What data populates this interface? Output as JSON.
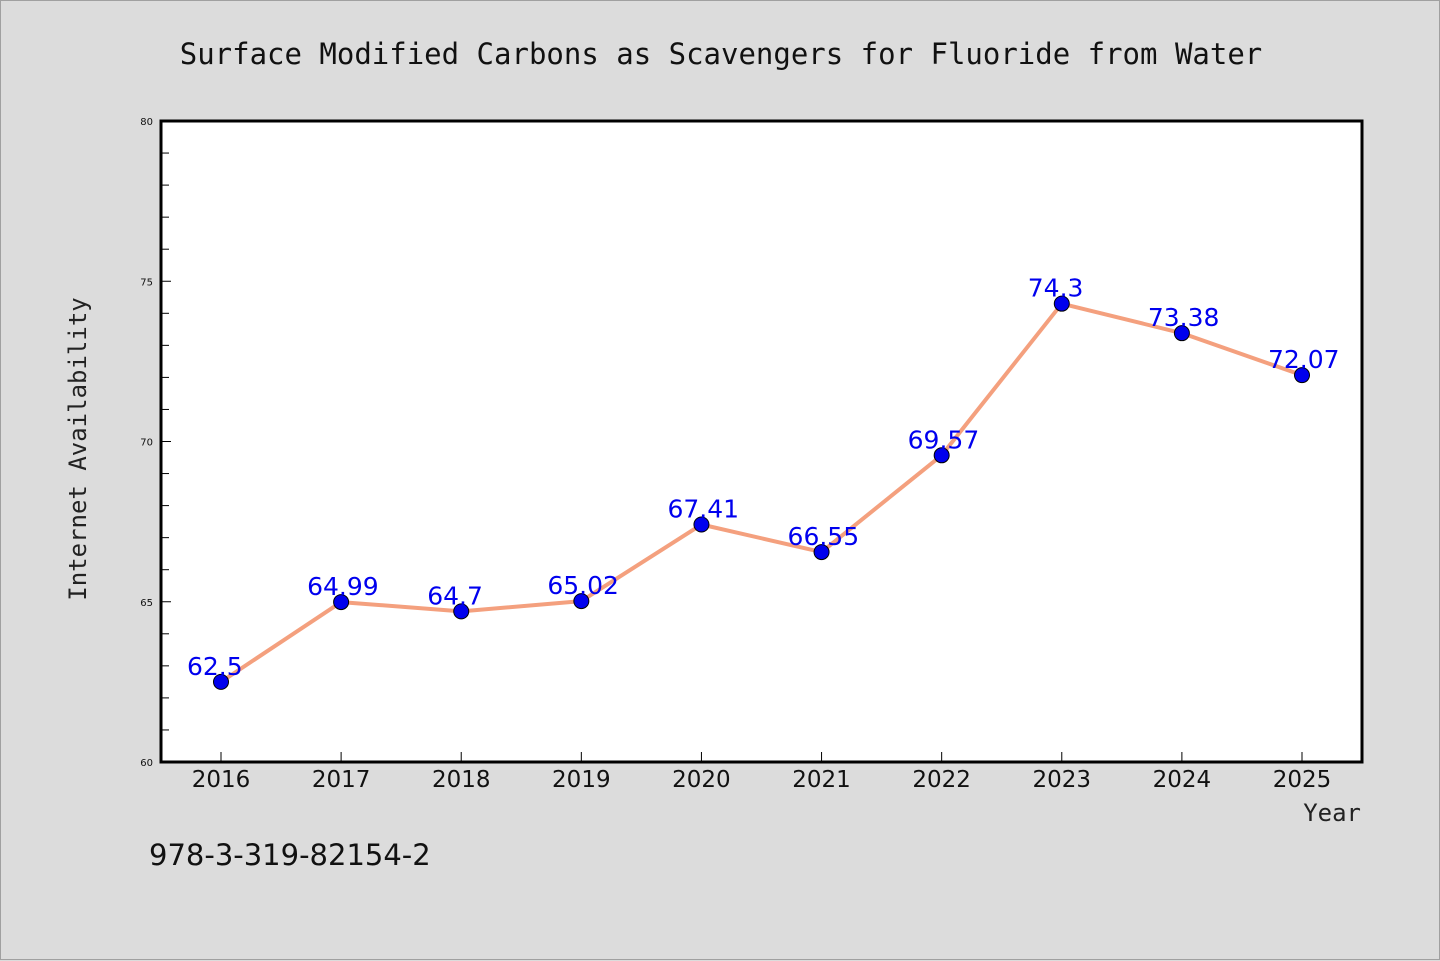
{
  "chart_data": {
    "type": "line",
    "title": "Surface Modified Carbons as Scavengers for Fluoride from Water",
    "xlabel": "Year",
    "ylabel": "Internet Availability",
    "categories": [
      "2016",
      "2017",
      "2018",
      "2019",
      "2020",
      "2021",
      "2022",
      "2023",
      "2024",
      "2025"
    ],
    "series": [
      {
        "values": [
          62.5,
          64.99,
          64.7,
          65.02,
          67.41,
          66.55,
          69.57,
          74.3,
          73.38,
          72.07
        ],
        "labels": [
          "62.5",
          "64.99",
          "64.7",
          "65.02",
          "67.41",
          "66.55",
          "69.57",
          "74.3",
          "73.38",
          "72.07"
        ]
      }
    ],
    "ylim": [
      60,
      80
    ],
    "yticks": [
      "60",
      "65",
      "70",
      "75",
      "80"
    ],
    "grid": false,
    "colors": {
      "line": "#f4a07e",
      "marker": "#0000ee",
      "label": "#0000ee",
      "background": "#dcdcdc",
      "plot_area": "#ffffff"
    }
  },
  "annotation": "978-3-319-82154-2"
}
